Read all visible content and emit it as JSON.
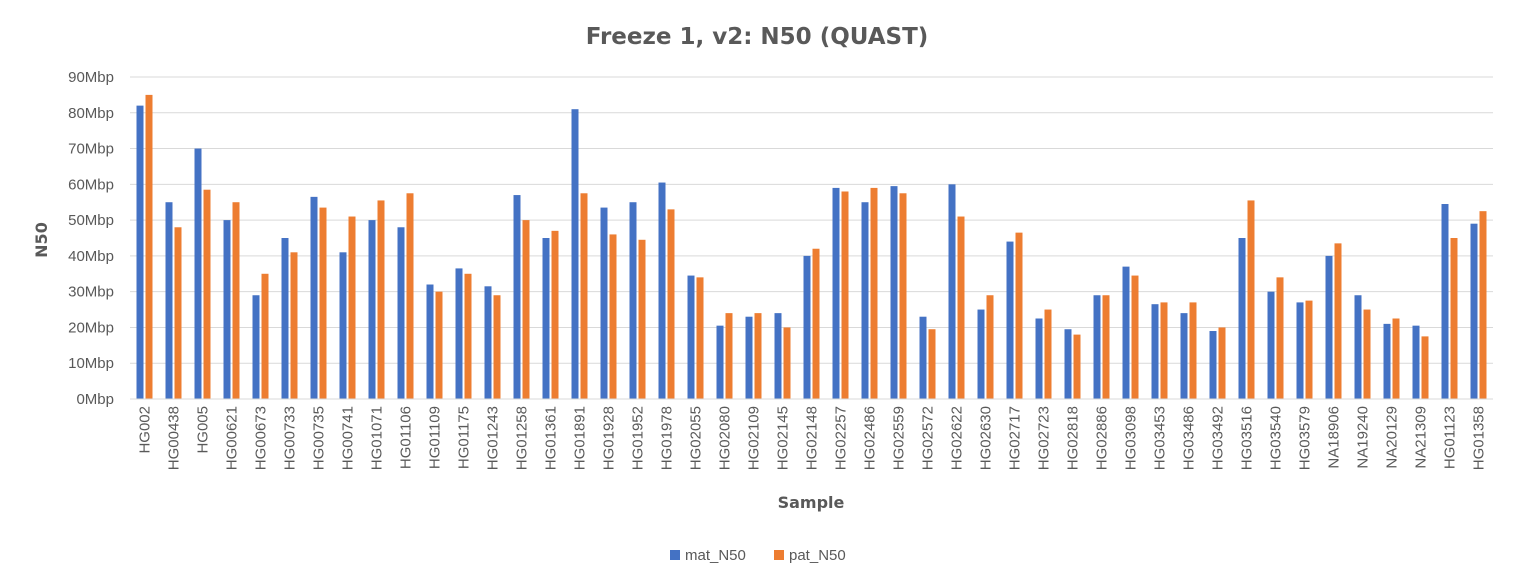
{
  "chart_data": {
    "type": "bar",
    "title": "Freeze 1, v2: N50 (QUAST)",
    "xlabel": "Sample",
    "ylabel": "N50",
    "ylim": [
      0,
      90
    ],
    "yticks": [
      "0Mbp",
      "10Mbp",
      "20Mbp",
      "30Mbp",
      "40Mbp",
      "50Mbp",
      "60Mbp",
      "70Mbp",
      "80Mbp",
      "90Mbp"
    ],
    "grid": true,
    "legend_position": "bottom",
    "categories": [
      "HG002",
      "HG00438",
      "HG005",
      "HG00621",
      "HG00673",
      "HG00733",
      "HG00735",
      "HG00741",
      "HG01071",
      "HG01106",
      "HG01109",
      "HG01175",
      "HG01243",
      "HG01258",
      "HG01361",
      "HG01891",
      "HG01928",
      "HG01952",
      "HG01978",
      "HG02055",
      "HG02080",
      "HG02109",
      "HG02145",
      "HG02148",
      "HG02257",
      "HG02486",
      "HG02559",
      "HG02572",
      "HG02622",
      "HG02630",
      "HG02717",
      "HG02723",
      "HG02818",
      "HG02886",
      "HG03098",
      "HG03453",
      "HG03486",
      "HG03492",
      "HG03516",
      "HG03540",
      "HG03579",
      "NA18906",
      "NA19240",
      "NA20129",
      "NA21309",
      "HG01123",
      "HG01358"
    ],
    "series": [
      {
        "name": "mat_N50",
        "color": "#4472c4",
        "values": [
          82,
          55,
          70,
          50,
          29,
          45,
          56.5,
          41,
          50,
          48,
          32,
          36.5,
          31.5,
          57,
          45,
          81,
          53.5,
          55,
          60.5,
          34.5,
          20.5,
          23,
          24,
          40,
          59,
          55,
          59.5,
          23,
          60,
          25,
          44,
          22.5,
          19.5,
          29,
          37,
          26.5,
          24,
          19,
          45,
          30,
          27,
          40,
          29,
          21,
          20.5,
          54.5,
          49
        ]
      },
      {
        "name": "pat_N50",
        "color": "#ed7d31",
        "values": [
          85,
          48,
          58.5,
          55,
          35,
          41,
          53.5,
          51,
          55.5,
          57.5,
          30,
          35,
          29,
          50,
          47,
          57.5,
          46,
          44.5,
          53,
          34,
          24,
          24,
          20,
          42,
          58,
          59,
          57.5,
          19.5,
          51,
          29,
          46.5,
          25,
          18,
          29,
          34.5,
          27,
          27,
          20,
          55.5,
          34,
          27.5,
          43.5,
          25,
          22.5,
          17.5,
          45,
          52.5
        ]
      }
    ]
  }
}
